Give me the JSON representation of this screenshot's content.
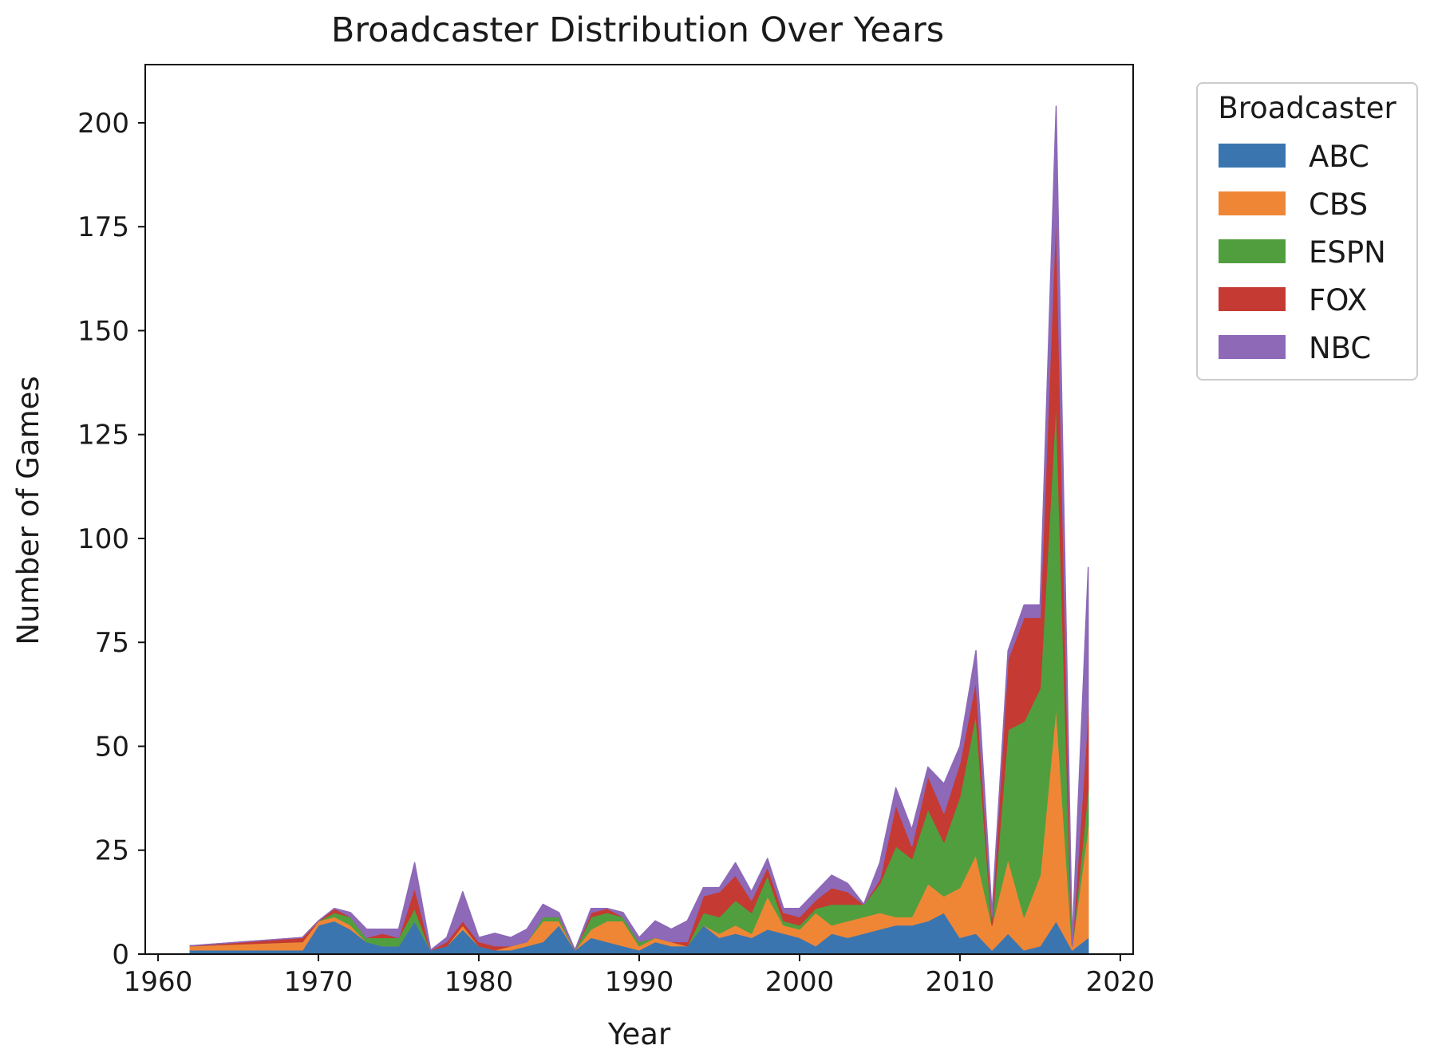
{
  "chart_data": {
    "type": "area",
    "stacked": true,
    "title": "Broadcaster Distribution Over Years",
    "xlabel": "Year",
    "ylabel": "Number of Games",
    "xlim": [
      1959.2,
      2020.8
    ],
    "ylim": [
      0,
      214
    ],
    "x_ticks": [
      1960,
      1970,
      1980,
      1990,
      2000,
      2010,
      2020
    ],
    "y_ticks": [
      0,
      25,
      50,
      75,
      100,
      125,
      150,
      175,
      200
    ],
    "grid": false,
    "legend": {
      "title": "Broadcaster",
      "placement": "outside-right-top"
    },
    "x": [
      1962,
      1969,
      1970,
      1971,
      1972,
      1973,
      1974,
      1975,
      1976,
      1977,
      1978,
      1979,
      1980,
      1981,
      1982,
      1983,
      1984,
      1985,
      1986,
      1987,
      1988,
      1989,
      1990,
      1991,
      1992,
      1993,
      1994,
      1995,
      1996,
      1997,
      1998,
      1999,
      2000,
      2001,
      2002,
      2003,
      2004,
      2005,
      2006,
      2007,
      2008,
      2009,
      2010,
      2011,
      2012,
      2013,
      2014,
      2015,
      2016,
      2017,
      2018
    ],
    "series": [
      {
        "name": "ABC",
        "color": "#3a75b0",
        "values": [
          1,
          1,
          7,
          8,
          6,
          3,
          2,
          2,
          8,
          1,
          2,
          6,
          2,
          1,
          1,
          2,
          3,
          7,
          1,
          4,
          3,
          2,
          1,
          3,
          2,
          2,
          7,
          4,
          5,
          4,
          6,
          5,
          4,
          2,
          5,
          4,
          5,
          6,
          7,
          7,
          8,
          10,
          4,
          5,
          1,
          5,
          1,
          2,
          8,
          1,
          4
        ]
      },
      {
        "name": "CBS",
        "color": "#ef8636",
        "values": [
          1,
          2,
          1,
          1,
          1,
          0,
          0,
          0,
          0,
          0,
          0,
          1,
          0,
          0,
          1,
          1,
          5,
          1,
          0,
          2,
          5,
          6,
          1,
          1,
          1,
          0,
          0,
          1,
          2,
          1,
          8,
          2,
          2,
          8,
          2,
          4,
          4,
          4,
          2,
          2,
          9,
          4,
          12,
          19,
          6,
          18,
          8,
          17,
          52,
          1,
          27
        ]
      },
      {
        "name": "ESPN",
        "color": "#519e3e",
        "values": [
          0,
          0,
          0,
          1,
          2,
          1,
          2,
          2,
          3,
          0,
          0,
          0,
          0,
          0,
          0,
          0,
          1,
          1,
          0,
          3,
          2,
          1,
          1,
          0,
          0,
          0,
          3,
          4,
          6,
          5,
          5,
          1,
          1,
          1,
          5,
          4,
          3,
          7,
          17,
          14,
          18,
          13,
          22,
          34,
          0,
          31,
          47,
          45,
          74,
          0,
          9
        ]
      },
      {
        "name": "FOX",
        "color": "#c53a32",
        "values": [
          0,
          1,
          0,
          1,
          0,
          0,
          1,
          0,
          5,
          0,
          1,
          1,
          1,
          1,
          0,
          0,
          0,
          0,
          0,
          1,
          1,
          0,
          0,
          0,
          0,
          1,
          4,
          6,
          6,
          3,
          2,
          2,
          2,
          2,
          4,
          3,
          0,
          1,
          10,
          3,
          8,
          7,
          8,
          8,
          2,
          17,
          25,
          17,
          46,
          0,
          19
        ]
      },
      {
        "name": "NBC",
        "color": "#8d69b8",
        "values": [
          0,
          0,
          0,
          0,
          1,
          2,
          1,
          2,
          6,
          0,
          1,
          7,
          1,
          3,
          2,
          3,
          3,
          1,
          0,
          1,
          0,
          1,
          1,
          4,
          3,
          5,
          2,
          1,
          3,
          2,
          2,
          1,
          2,
          2,
          3,
          2,
          0,
          4,
          4,
          4,
          2,
          7,
          4,
          7,
          1,
          2,
          3,
          3,
          24,
          1,
          34
        ]
      }
    ]
  }
}
